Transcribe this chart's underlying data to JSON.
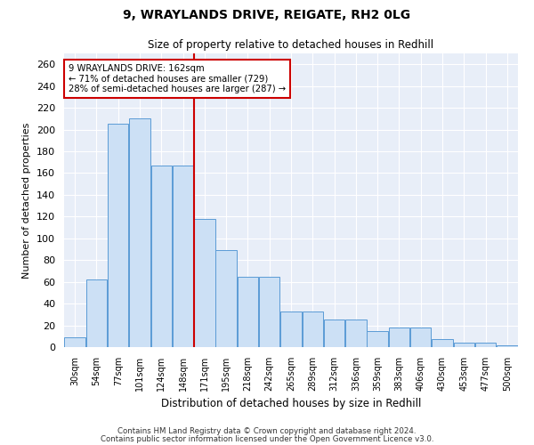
{
  "title1": "9, WRAYLANDS DRIVE, REIGATE, RH2 0LG",
  "title2": "Size of property relative to detached houses in Redhill",
  "xlabel": "Distribution of detached houses by size in Redhill",
  "ylabel": "Number of detached properties",
  "categories": [
    "30sqm",
    "54sqm",
    "77sqm",
    "101sqm",
    "124sqm",
    "148sqm",
    "171sqm",
    "195sqm",
    "218sqm",
    "242sqm",
    "265sqm",
    "289sqm",
    "312sqm",
    "336sqm",
    "359sqm",
    "383sqm",
    "406sqm",
    "430sqm",
    "453sqm",
    "477sqm",
    "500sqm"
  ],
  "values": [
    9,
    62,
    205,
    210,
    167,
    167,
    118,
    89,
    65,
    65,
    33,
    33,
    25,
    25,
    15,
    18,
    18,
    7,
    4,
    4,
    2
  ],
  "bar_color": "#cce0f5",
  "bar_edge_color": "#5b9bd5",
  "vline_color": "#cc0000",
  "annotation_title": "9 WRAYLANDS DRIVE: 162sqm",
  "annotation_line1": "← 71% of detached houses are smaller (729)",
  "annotation_line2": "28% of semi-detached houses are larger (287) →",
  "annotation_box_color": "#ffffff",
  "annotation_box_edge": "#cc0000",
  "footnote1": "Contains HM Land Registry data © Crown copyright and database right 2024.",
  "footnote2": "Contains public sector information licensed under the Open Government Licence v3.0.",
  "bg_color": "#e8eef8",
  "yticks": [
    0,
    20,
    40,
    60,
    80,
    100,
    120,
    140,
    160,
    180,
    200,
    220,
    240,
    260
  ],
  "ylim": [
    0,
    270
  ]
}
